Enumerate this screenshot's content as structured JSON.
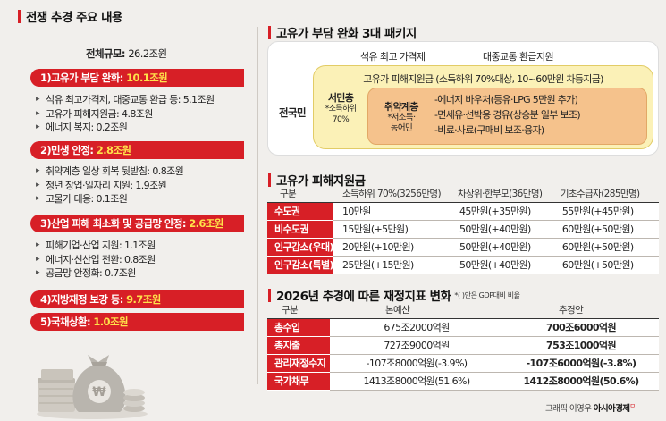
{
  "left": {
    "title": "전쟁 추경 주요 내용",
    "total_label": "전체규모:",
    "total_value": "26.2조원",
    "sections": [
      {
        "label": "1)고유가 부담 완화: ",
        "amount": "10.1조원",
        "items": [
          "석유 최고가격제, 대중교통 환급 등: 5.1조원",
          "고유가 피해지원금: 4.8조원",
          "에너지 복지: 0.2조원"
        ]
      },
      {
        "label": "2)민생 안정: ",
        "amount": "2.8조원",
        "items": [
          "취약계층 일상 회복 뒷받침: 0.8조원",
          "청년 창업·일자리 지원: 1.9조원",
          "고물가 대응: 0.1조원"
        ]
      },
      {
        "label": "3)산업 피해 최소화 및 공급망 안정: ",
        "amount": "2.6조원",
        "items": [
          "피해기업·산업 지원: 1.1조원",
          "에너지·신산업 전환: 0.8조원",
          "공급망 안정화: 0.7조원"
        ]
      },
      {
        "label": "4)지방재정 보강 등: ",
        "amount": "9.7조원",
        "items": []
      },
      {
        "label": "5)국채상환: ",
        "amount": "1.0조원",
        "items": []
      }
    ]
  },
  "package": {
    "title": "고유가 부담 완화 3대 패키지",
    "col1": "석유 최고 가격제",
    "col2": "대중교통 환급지원",
    "support_line": "고유가 피해지원금 (소득하위 70%대상, 10~60만원 차등지급)",
    "national": "전국민",
    "seomin_title": "서민층",
    "seomin_sub1": "*소득하위",
    "seomin_sub2": "70%",
    "vuln_title": "취약계층",
    "vuln_sub1": "*저소득·",
    "vuln_sub2": "농어민",
    "benefits": [
      "-에너지 바우처(등유·LPG 5만원 추가)",
      "-면세유·선박용 경유(상승분 일부 보조)",
      "-비료·사료(구매비 보조·융자)"
    ]
  },
  "support": {
    "title": "고유가 피해지원금",
    "headers": [
      "구분",
      "소득하위 70%(3256만명)",
      "차상위·한부모(36만명)",
      "기초수급자(285만명)"
    ],
    "rows": [
      [
        "수도권",
        "10만원",
        "45만원(+35만원)",
        "55만원(+45만원)"
      ],
      [
        "비수도권",
        "15만원(+5만원)",
        "50만원(+40만원)",
        "60만원(+50만원)"
      ],
      [
        "인구감소(우대)",
        "20만원(+10만원)",
        "50만원(+40만원)",
        "60만원(+50만원)"
      ],
      [
        "인구감소(특별)",
        "25만원(+15만원)",
        "50만원(+40만원)",
        "60만원(+50만원)"
      ]
    ]
  },
  "fiscal": {
    "title": "2026년 추경에 따른 재정지표 변화",
    "note": "*( )안은 GDP대비 비율",
    "headers": [
      "구분",
      "본예산",
      "추경안"
    ],
    "rows": [
      [
        "총수입",
        "675조2000억원",
        "700조6000억원"
      ],
      [
        "총지출",
        "727조9000억원",
        "753조1000억원"
      ],
      [
        "관리재정수지",
        "-107조8000억원(-3.9%)",
        "-107조6000억원(-3.8%)"
      ],
      [
        "국가채무",
        "1413조8000억원(51.6%)",
        "1412조8000억원(50.6%)"
      ]
    ]
  },
  "credit": {
    "text": "그래픽 이영우 ",
    "brand": "아시아경제",
    "mark": "ㅁ"
  },
  "colors": {
    "accent": "#d71f26",
    "highlight": "#ffe24a",
    "yellow": "#fbf1b7",
    "orange": "#f5c28c",
    "background": "#f1efec"
  }
}
